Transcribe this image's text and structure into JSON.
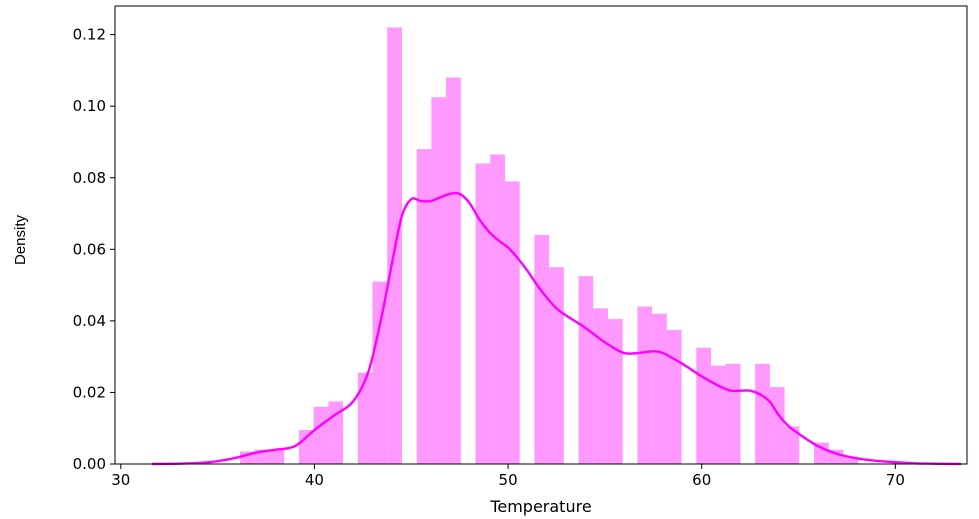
{
  "chart_data": {
    "type": "bar",
    "subtype": "histogram with kde line",
    "title": "",
    "xlabel": "Temperature",
    "ylabel": "Density",
    "xlim": [
      29.7,
      73.7
    ],
    "ylim": [
      0,
      0.128
    ],
    "xticks": [
      30,
      40,
      50,
      60,
      70
    ],
    "yticks": [
      0.0,
      0.02,
      0.04,
      0.06,
      0.08,
      0.1,
      0.12
    ],
    "ytick_labels": [
      "0.00",
      "0.02",
      "0.04",
      "0.06",
      "0.08",
      "0.10",
      "0.12"
    ],
    "grid": false,
    "bar_color": "#ff99ff",
    "line_color": "#ff00ff",
    "histogram": {
      "bin_edges": [
        31.6,
        32.36,
        33.12,
        33.88,
        34.64,
        35.4,
        36.16,
        36.92,
        37.68,
        38.44,
        39.2,
        39.96,
        40.72,
        41.48,
        42.24,
        43.0,
        43.76,
        44.52,
        45.28,
        46.04,
        46.8,
        47.56,
        48.32,
        49.08,
        49.84,
        50.6,
        51.36,
        52.12,
        52.88,
        53.64,
        54.4,
        55.16,
        55.92,
        56.68,
        57.44,
        58.2,
        58.96,
        59.72,
        60.48,
        61.24,
        62.0,
        62.76,
        63.52,
        64.28,
        65.04,
        65.8,
        66.56,
        67.32,
        68.08,
        68.84,
        69.6,
        70.36,
        71.12,
        71.88,
        72.64,
        73.4
      ],
      "densities": [
        0,
        0,
        0,
        0,
        0,
        0,
        0.0035,
        0.004,
        0.004,
        0,
        0.0095,
        0.016,
        0.0175,
        0,
        0.0255,
        0.051,
        0.122,
        0,
        0.088,
        0.1025,
        0.108,
        0,
        0.084,
        0.0865,
        0.079,
        0,
        0.064,
        0.055,
        0,
        0.0525,
        0.0435,
        0.0405,
        0,
        0.044,
        0.042,
        0.0375,
        0,
        0.0325,
        0.0275,
        0.028,
        0,
        0.028,
        0.0215,
        0.0105,
        0,
        0.006,
        0.004,
        0.002,
        0,
        0,
        0,
        0,
        0,
        0,
        0
      ]
    },
    "kde": {
      "x": [
        31.6,
        33,
        34,
        35,
        36,
        37,
        38,
        39,
        40,
        41,
        42,
        42.8,
        43.5,
        44,
        44.5,
        45,
        45.5,
        46,
        46.5,
        47,
        47.5,
        48,
        48.5,
        49,
        49.5,
        50,
        50.5,
        51,
        51.5,
        52,
        52.5,
        53,
        54,
        55,
        56,
        57,
        57.5,
        58,
        59,
        60,
        61,
        61.5,
        62,
        62.5,
        63,
        63.5,
        64,
        64.5,
        65,
        66,
        67,
        68,
        69,
        70,
        71,
        72,
        73.4
      ],
      "y": [
        0,
        0.0001,
        0.0003,
        0.0008,
        0.0018,
        0.0032,
        0.004,
        0.005,
        0.0095,
        0.0135,
        0.0175,
        0.026,
        0.042,
        0.056,
        0.069,
        0.074,
        0.0735,
        0.0735,
        0.0745,
        0.0755,
        0.0755,
        0.073,
        0.0685,
        0.065,
        0.0625,
        0.0605,
        0.0575,
        0.054,
        0.05,
        0.0465,
        0.0435,
        0.0415,
        0.038,
        0.034,
        0.031,
        0.0312,
        0.0315,
        0.031,
        0.028,
        0.0245,
        0.0215,
        0.0205,
        0.0205,
        0.0205,
        0.0195,
        0.0175,
        0.0135,
        0.0105,
        0.0085,
        0.005,
        0.0028,
        0.0016,
        0.0009,
        0.0005,
        0.0002,
        0.0001,
        0
      ]
    }
  }
}
